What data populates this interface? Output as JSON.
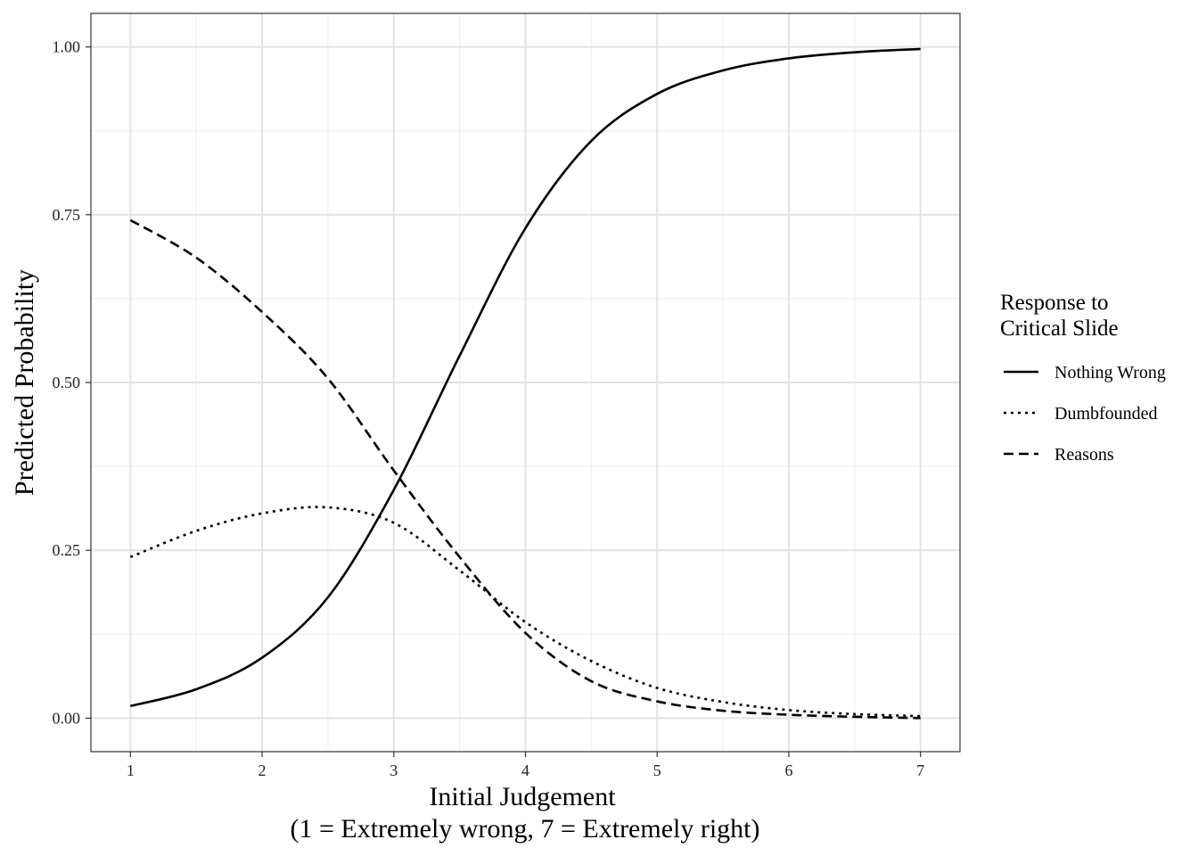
{
  "chart_data": {
    "type": "line",
    "xlabel": "Initial Judgement",
    "xlabel_sub": "(1 = Extremely wrong, 7 = Extremely right)",
    "ylabel": "Predicted Probability",
    "xlim": [
      0.7,
      7.3
    ],
    "ylim": [
      -0.05,
      1.05
    ],
    "x_ticks": [
      1,
      2,
      3,
      4,
      5,
      6,
      7
    ],
    "x_tick_labels": [
      "1",
      "2",
      "3",
      "4",
      "5",
      "6",
      "7"
    ],
    "y_ticks": [
      0,
      0.25,
      0.5,
      0.75,
      1.0
    ],
    "y_tick_labels": [
      "0.00",
      "0.25",
      "0.50",
      "0.75",
      "1.00"
    ],
    "grid": true,
    "legend": {
      "title_line1": "Response to",
      "title_line2": "Critical Slide",
      "placement": "right"
    },
    "x": [
      1,
      1.5,
      2,
      2.5,
      3,
      3.5,
      4,
      4.5,
      5,
      5.5,
      6,
      6.5,
      7
    ],
    "series": [
      {
        "name": "Nothing Wrong",
        "linestyle": "solid",
        "values": [
          0.018,
          0.043,
          0.09,
          0.18,
          0.34,
          0.54,
          0.73,
          0.86,
          0.93,
          0.965,
          0.983,
          0.992,
          0.997
        ]
      },
      {
        "name": "Dumbfounded",
        "linestyle": "dotted",
        "values": [
          0.24,
          0.279,
          0.305,
          0.314,
          0.291,
          0.22,
          0.143,
          0.085,
          0.045,
          0.024,
          0.012,
          0.006,
          0.003
        ]
      },
      {
        "name": "Reasons",
        "linestyle": "dashed",
        "values": [
          0.742,
          0.686,
          0.605,
          0.506,
          0.369,
          0.24,
          0.127,
          0.055,
          0.025,
          0.011,
          0.005,
          0.002,
          0.0
        ]
      }
    ]
  }
}
